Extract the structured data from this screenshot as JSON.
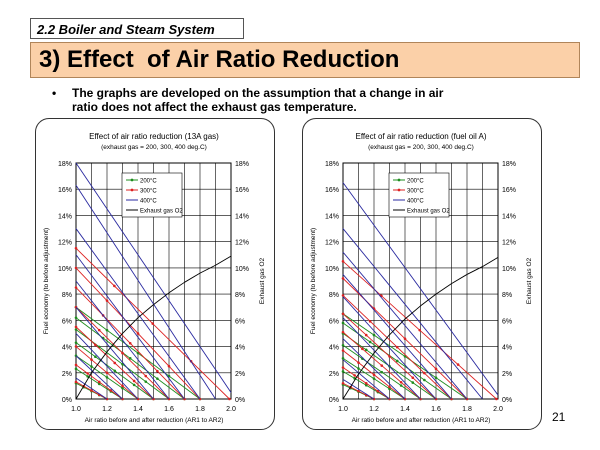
{
  "section_tag": "2.2 Boiler and Steam System",
  "title": "3) Effect  of Air Ratio Reduction",
  "bullet": {
    "marker": "•",
    "line1": "The graphs are developed on the assumption that a change in air",
    "line2": "ratio does not affect the exhaust gas temperature."
  },
  "page_number": "21",
  "colors": {
    "series_200": "#1e8c1e",
    "series_300": "#dd2222",
    "series_400": "#2a2aa0",
    "series_o2": "#000000",
    "title_bar": "#fbd0a8"
  },
  "chart_data": [
    {
      "type": "line",
      "title": "Effect of air ratio reduction (13A gas)",
      "subtitle": "(exhaust gas = 200, 300, 400 deg.C)",
      "xlabel": "Air ratio before and after reduction (AR1 to AR2)",
      "ylabel": "Fuel economy (to before adjustment)",
      "y2label": "Exhaust gas O2",
      "xlim": [
        1.0,
        2.0
      ],
      "ylim": [
        0,
        18
      ],
      "x_ticks": [
        "1.0",
        "1.2",
        "1.4",
        "1.6",
        "1.8",
        "2.0"
      ],
      "y_ticks": [
        "0%",
        "2%",
        "4%",
        "6%",
        "8%",
        "10%",
        "12%",
        "14%",
        "16%",
        "18%"
      ],
      "legend": {
        "position": "top-center",
        "entries": [
          {
            "label": "200°C",
            "series": "200"
          },
          {
            "label": "300°C",
            "series": "300"
          },
          {
            "label": "400°C",
            "series": "400"
          },
          {
            "label": "Exhaust gas O2",
            "series": "o2"
          }
        ]
      },
      "series": [
        {
          "name": "200°C",
          "key": "200",
          "marker": true,
          "lines": [
            [
              [
                1.0,
                7.0
              ],
              [
                1.8,
                0.0
              ]
            ],
            [
              [
                1.0,
                6.2
              ],
              [
                1.7,
                0.0
              ]
            ],
            [
              [
                1.0,
                5.3
              ],
              [
                1.6,
                0.0
              ]
            ],
            [
              [
                1.0,
                4.3
              ],
              [
                1.5,
                0.0
              ]
            ],
            [
              [
                1.0,
                3.3
              ],
              [
                1.4,
                0.0
              ]
            ],
            [
              [
                1.0,
                2.3
              ],
              [
                1.3,
                0.0
              ]
            ],
            [
              [
                1.0,
                1.2
              ],
              [
                1.2,
                0.0
              ]
            ]
          ]
        },
        {
          "name": "300°C",
          "key": "300",
          "marker": true,
          "lines": [
            [
              [
                1.0,
                11.5
              ],
              [
                1.99,
                0.0
              ]
            ],
            [
              [
                1.0,
                10.0
              ],
              [
                1.8,
                0.0
              ]
            ],
            [
              [
                1.0,
                8.5
              ],
              [
                1.7,
                0.0
              ]
            ],
            [
              [
                1.0,
                7.0
              ],
              [
                1.6,
                0.0
              ]
            ],
            [
              [
                1.0,
                5.5
              ],
              [
                1.5,
                0.0
              ]
            ],
            [
              [
                1.0,
                4.0
              ],
              [
                1.4,
                0.0
              ]
            ],
            [
              [
                1.0,
                2.6
              ],
              [
                1.3,
                0.0
              ]
            ],
            [
              [
                1.0,
                1.3
              ],
              [
                1.2,
                0.0
              ]
            ]
          ]
        },
        {
          "name": "400°C",
          "key": "400",
          "marker": false,
          "lines": [
            [
              [
                1.0,
                18.0
              ],
              [
                2.0,
                0.5
              ]
            ],
            [
              [
                1.0,
                16.3
              ],
              [
                1.9,
                0.0
              ]
            ],
            [
              [
                1.0,
                13.0
              ],
              [
                1.8,
                0.0
              ]
            ],
            [
              [
                1.0,
                11.0
              ],
              [
                1.7,
                0.0
              ]
            ],
            [
              [
                1.0,
                9.0
              ],
              [
                1.6,
                0.0
              ]
            ],
            [
              [
                1.0,
                7.0
              ],
              [
                1.5,
                0.0
              ]
            ],
            [
              [
                1.0,
                5.0
              ],
              [
                1.4,
                0.0
              ]
            ],
            [
              [
                1.0,
                3.3
              ],
              [
                1.3,
                0.0
              ]
            ],
            [
              [
                1.0,
                1.6
              ],
              [
                1.2,
                0.0
              ]
            ]
          ]
        },
        {
          "name": "Exhaust gas O2",
          "key": "o2",
          "marker": false,
          "lines": [
            [
              [
                1.0,
                0.0
              ],
              [
                1.1,
                2.0
              ],
              [
                1.2,
                3.6
              ],
              [
                1.3,
                5.0
              ],
              [
                1.4,
                6.2
              ],
              [
                1.5,
                7.2
              ],
              [
                1.6,
                8.1
              ],
              [
                1.7,
                8.9
              ],
              [
                1.8,
                9.6
              ],
              [
                1.9,
                10.2
              ],
              [
                2.0,
                10.9
              ]
            ]
          ]
        }
      ]
    },
    {
      "type": "line",
      "title": "Effect of air ratio reduction (fuel oil A)",
      "subtitle": "(exhaust gas = 200, 300, 400 deg.C)",
      "xlabel": "Air ratio before and after reduction (AR1 to AR2)",
      "ylabel": "Fuel economy (to before adjustment)",
      "y2label": "Exhaust gas O2",
      "xlim": [
        1.0,
        2.0
      ],
      "ylim": [
        0,
        18
      ],
      "x_ticks": [
        "1.0",
        "1.2",
        "1.4",
        "1.6",
        "1.8",
        "2.0"
      ],
      "y_ticks": [
        "0%",
        "2%",
        "4%",
        "6%",
        "8%",
        "10%",
        "12%",
        "14%",
        "16%",
        "18%"
      ],
      "legend": {
        "position": "top-center",
        "entries": [
          {
            "label": "200°C",
            "series": "200"
          },
          {
            "label": "300°C",
            "series": "300"
          },
          {
            "label": "400°C",
            "series": "400"
          },
          {
            "label": "Exhaust gas O2",
            "series": "o2"
          }
        ]
      },
      "series": [
        {
          "name": "200°C",
          "key": "200",
          "marker": true,
          "lines": [
            [
              [
                1.0,
                6.5
              ],
              [
                1.8,
                0.0
              ]
            ],
            [
              [
                1.0,
                5.8
              ],
              [
                1.7,
                0.0
              ]
            ],
            [
              [
                1.0,
                5.0
              ],
              [
                1.6,
                0.0
              ]
            ],
            [
              [
                1.0,
                4.1
              ],
              [
                1.5,
                0.0
              ]
            ],
            [
              [
                1.0,
                3.1
              ],
              [
                1.4,
                0.0
              ]
            ],
            [
              [
                1.0,
                2.1
              ],
              [
                1.3,
                0.0
              ]
            ],
            [
              [
                1.0,
                1.1
              ],
              [
                1.2,
                0.0
              ]
            ]
          ]
        },
        {
          "name": "300°C",
          "key": "300",
          "marker": true,
          "lines": [
            [
              [
                1.0,
                10.5
              ],
              [
                1.99,
                0.0
              ]
            ],
            [
              [
                1.0,
                9.2
              ],
              [
                1.8,
                0.0
              ]
            ],
            [
              [
                1.0,
                7.9
              ],
              [
                1.7,
                0.0
              ]
            ],
            [
              [
                1.0,
                6.5
              ],
              [
                1.6,
                0.0
              ]
            ],
            [
              [
                1.0,
                5.1
              ],
              [
                1.5,
                0.0
              ]
            ],
            [
              [
                1.0,
                3.7
              ],
              [
                1.4,
                0.0
              ]
            ],
            [
              [
                1.0,
                2.4
              ],
              [
                1.3,
                0.0
              ]
            ],
            [
              [
                1.0,
                1.2
              ],
              [
                1.2,
                0.0
              ]
            ]
          ]
        },
        {
          "name": "400°C",
          "key": "400",
          "marker": false,
          "lines": [
            [
              [
                1.0,
                16.5
              ],
              [
                2.0,
                0.3
              ]
            ],
            [
              [
                1.0,
                13.0
              ],
              [
                1.9,
                0.0
              ]
            ],
            [
              [
                1.0,
                11.2
              ],
              [
                1.8,
                0.0
              ]
            ],
            [
              [
                1.0,
                9.5
              ],
              [
                1.7,
                0.0
              ]
            ],
            [
              [
                1.0,
                7.8
              ],
              [
                1.6,
                0.0
              ]
            ],
            [
              [
                1.0,
                6.2
              ],
              [
                1.5,
                0.0
              ]
            ],
            [
              [
                1.0,
                4.6
              ],
              [
                1.4,
                0.0
              ]
            ],
            [
              [
                1.0,
                3.0
              ],
              [
                1.3,
                0.0
              ]
            ],
            [
              [
                1.0,
                1.5
              ],
              [
                1.2,
                0.0
              ]
            ]
          ]
        },
        {
          "name": "Exhaust gas O2",
          "key": "o2",
          "marker": false,
          "lines": [
            [
              [
                1.0,
                0.0
              ],
              [
                1.1,
                1.9
              ],
              [
                1.2,
                3.5
              ],
              [
                1.3,
                4.9
              ],
              [
                1.4,
                6.1
              ],
              [
                1.5,
                7.1
              ],
              [
                1.6,
                8.0
              ],
              [
                1.7,
                8.8
              ],
              [
                1.8,
                9.5
              ],
              [
                1.9,
                10.1
              ],
              [
                2.0,
                10.8
              ]
            ]
          ]
        }
      ]
    }
  ]
}
